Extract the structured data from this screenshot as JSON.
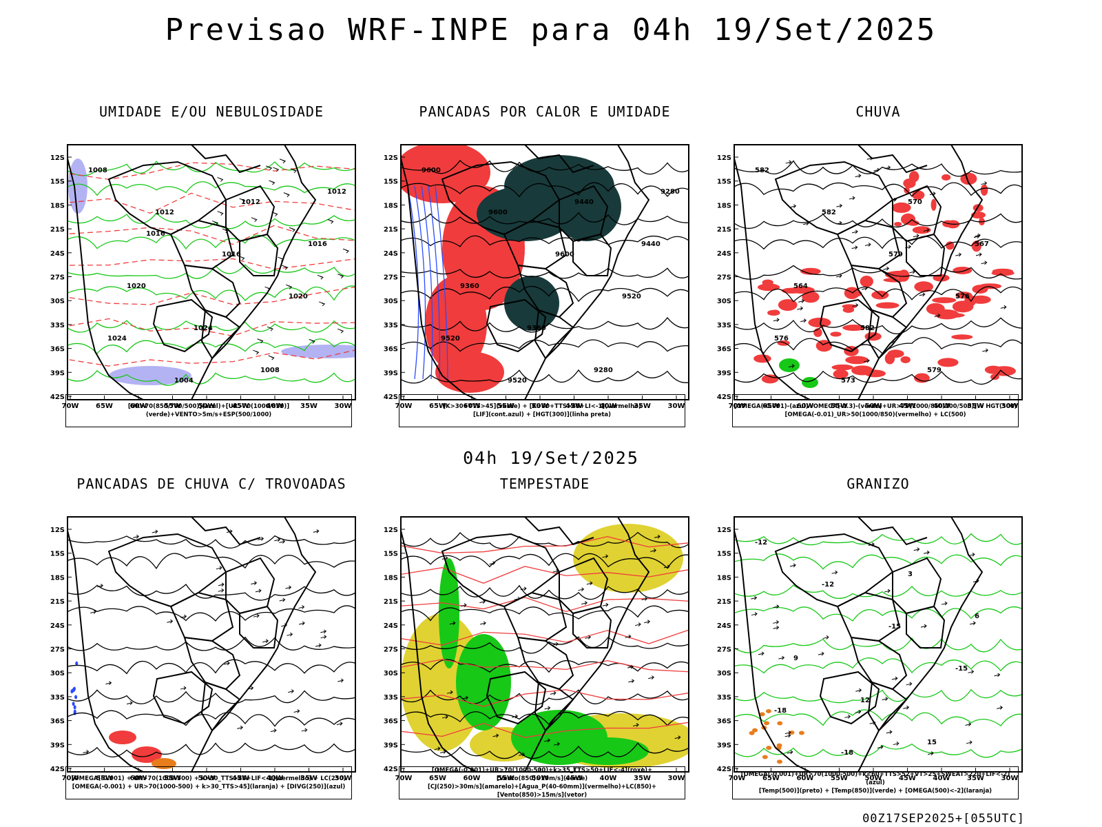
{
  "header": {
    "title": "Previsao WRF-INPE  para 04h 19/Set/2025"
  },
  "mid_title": "04h 19/Set/2025",
  "footer": "00Z17SEP2025+[055UTC]",
  "axes": {
    "lat_labels": [
      "12S",
      "15S",
      "18S",
      "21S",
      "24S",
      "27S",
      "30S",
      "33S",
      "36S",
      "39S",
      "42S"
    ],
    "lon_labels": [
      "70W",
      "65W",
      "60W",
      "55W",
      "50W",
      "45W",
      "40W",
      "35W",
      "30W"
    ]
  },
  "colors": {
    "red": "#f03c3c",
    "green": "#17c817",
    "blue": "#2a4bff",
    "dark_teal": "#183a3a",
    "yellow": "#e0d232",
    "orange": "#e87d1c",
    "lilac": "#a0a0f0"
  },
  "panels": [
    {
      "title": "UMIDADE E/OU NEBULOSIDADE",
      "legend": [
        "[UR>70(850/700/500)](azul)+[UR>70(1000/850)](verde)+VENTO>5m/s+ESP(500/1000)"
      ],
      "contour_labels": [
        "1008",
        "1012",
        "1016",
        "1020",
        "1024",
        "1004",
        "1012",
        "1016",
        "1020",
        "1024",
        "1008",
        "1012",
        "1016"
      ]
    },
    {
      "title": "PANCADAS POR CALOR E UMIDADE",
      "legend": [
        "[K>30+TTS>45](verde) + [K>30+TTS>45+LI<-1](vermelho)",
        "[LIF](cont.azul) + [HGT(300)](linha preta)"
      ],
      "contour_labels": [
        "9600",
        "9600",
        "9600",
        "9520",
        "9520",
        "9520",
        "9440",
        "9440",
        "9360",
        "9360",
        "9280",
        "9280"
      ]
    },
    {
      "title": "CHUVA",
      "legend": [
        "[OMEGA(-0.001)-(azul)+OMEGA(-0.3)-(verde)+UR>70(1000/850/700/500)] + HGT(500)",
        "[OMEGA(-0.01)_UR>50(1000/850)(vermelho) + LC(500)"
      ],
      "contour_labels": [
        "582",
        "582",
        "579",
        "576",
        "576",
        "573",
        "570",
        "567",
        "564",
        "582",
        "579"
      ]
    },
    {
      "title": "PANCADAS DE CHUVA C/ TROVOADAS",
      "legend": [
        "[OMEGA(-0.001) + UR>70(1000-500) + k>30_TTS>45+LIF<-1](vermelho) + LC(250)",
        "[OMEGA(-0.001) + UR>70(1000-500) + k>30_TTS>45](laranja) + [DIVG(250)](azul)"
      ],
      "contour_labels": []
    },
    {
      "title": "TEMPESTADE",
      "legend": [
        "[OMEGA(-0.001)+UR>70(1000-500)+k>35_TTS>50+LIF<-4](roxo)+[Vento(850)>10m/s](verde)",
        "[CJ(250)>30m/s](amarelo)+[Agua_P(40-60mm)](vermelho)+LC(850)+[Vento(850)>15m/s](vetor)"
      ],
      "contour_labels": []
    },
    {
      "title": "GRANIZO",
      "legend": [
        "[OMEGA(-0.001)+UR>70(1000-500)+k<60+TTS>52+VT>25+SWEAT>220+LIF<-2](azul)",
        "[Temp(500)](preto) + [Temp(850)](verde) + [OMEGA(500)<-2](laranja)"
      ],
      "contour_labels": [
        "-12",
        "-12",
        "-15",
        "-15",
        "-18",
        "-18",
        "3",
        "6",
        "9",
        "12",
        "15"
      ]
    }
  ]
}
